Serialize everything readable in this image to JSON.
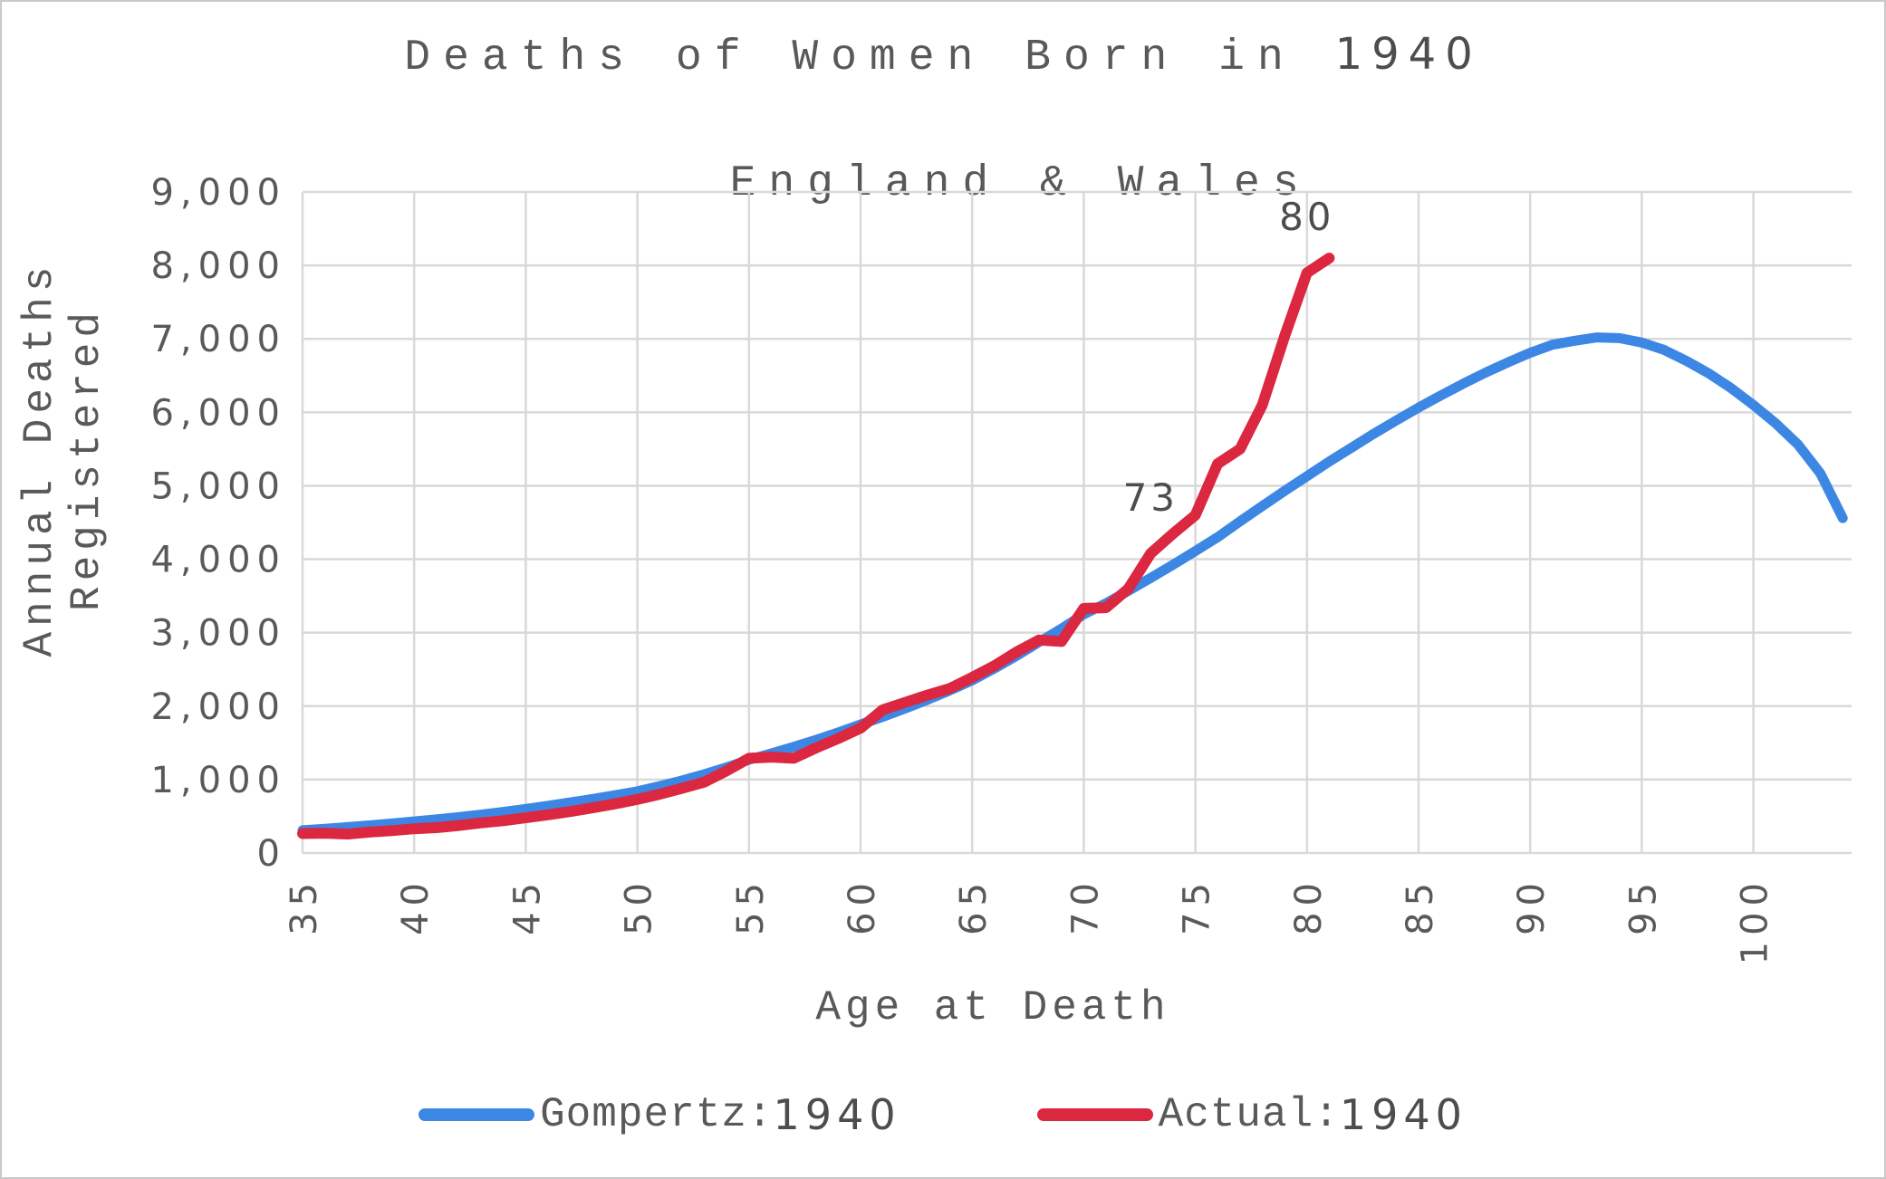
{
  "title": {
    "line1_text": "Deaths of Women Born in ",
    "line1_year": "1940",
    "line2": "England & Wales"
  },
  "y_axis": {
    "title": "Annual Deaths Registered",
    "ticks": [
      {
        "label": "0",
        "value": 0
      },
      {
        "label": "1,000",
        "value": 1000
      },
      {
        "label": "2,000",
        "value": 2000
      },
      {
        "label": "3,000",
        "value": 3000
      },
      {
        "label": "4,000",
        "value": 4000
      },
      {
        "label": "5,000",
        "value": 5000
      },
      {
        "label": "6,000",
        "value": 6000
      },
      {
        "label": "7,000",
        "value": 7000
      },
      {
        "label": "8,000",
        "value": 8000
      },
      {
        "label": "9,000",
        "value": 9000
      }
    ]
  },
  "x_axis": {
    "title": "Age at Death",
    "ticks": [
      {
        "label": "35",
        "value": 35
      },
      {
        "label": "40",
        "value": 40
      },
      {
        "label": "45",
        "value": 45
      },
      {
        "label": "50",
        "value": 50
      },
      {
        "label": "55",
        "value": 55
      },
      {
        "label": "60",
        "value": 60
      },
      {
        "label": "65",
        "value": 65
      },
      {
        "label": "70",
        "value": 70
      },
      {
        "label": "75",
        "value": 75
      },
      {
        "label": "80",
        "value": 80
      },
      {
        "label": "85",
        "value": 85
      },
      {
        "label": "90",
        "value": 90
      },
      {
        "label": "95",
        "value": 95
      },
      {
        "label": "100",
        "value": 100
      }
    ]
  },
  "legend": [
    {
      "label": "Gompertz: ",
      "year": "1940",
      "color": "#3D87E4"
    },
    {
      "label": "Actual: ",
      "year": "1940",
      "color": "#DB2740"
    }
  ],
  "colors": {
    "gompertz_blue": "#3D87E4",
    "actual_red": "#DB2740",
    "grid": "#d9d9d9",
    "text": "#595959"
  },
  "chart_data": {
    "type": "line",
    "title": "Deaths of Women Born in 1940  England & Wales",
    "xlabel": "Age at Death",
    "ylabel": "Annual Deaths Registered",
    "xlim": [
      35,
      104.5
    ],
    "ylim": [
      0,
      9000
    ],
    "grid": true,
    "legend_position": "bottom",
    "annotations": [
      {
        "label": "73",
        "x": 73,
        "y": 4080
      },
      {
        "label": "80",
        "x": 80,
        "y": 7900
      }
    ],
    "series": [
      {
        "name": "Gompertz: 1940",
        "color": "#3D87E4",
        "x": [
          35,
          36,
          37,
          38,
          39,
          40,
          41,
          42,
          43,
          44,
          45,
          46,
          47,
          48,
          49,
          50,
          51,
          52,
          53,
          54,
          55,
          56,
          57,
          58,
          59,
          60,
          61,
          62,
          63,
          64,
          65,
          66,
          67,
          68,
          69,
          70,
          71,
          72,
          73,
          74,
          75,
          76,
          77,
          78,
          79,
          80,
          81,
          82,
          83,
          84,
          85,
          86,
          87,
          88,
          89,
          90,
          91,
          92,
          93,
          94,
          95,
          96,
          97,
          98,
          99,
          100,
          101,
          102,
          103,
          104
        ],
        "values": [
          310,
          330,
          352,
          376,
          402,
          430,
          458,
          489,
          523,
          560,
          600,
          643,
          689,
          736,
          786,
          840,
          911,
          988,
          1072,
          1166,
          1270,
          1355,
          1445,
          1540,
          1642,
          1750,
          1856,
          1968,
          2087,
          2214,
          2350,
          2512,
          2686,
          2872,
          3055,
          3250,
          3400,
          3570,
          3745,
          3925,
          4110,
          4300,
          4515,
          4725,
          4930,
          5130,
          5330,
          5520,
          5710,
          5890,
          6065,
          6230,
          6390,
          6540,
          6680,
          6810,
          6920,
          6975,
          7020,
          7010,
          6950,
          6850,
          6700,
          6530,
          6330,
          6100,
          5850,
          5560,
          5170,
          4560
        ]
      },
      {
        "name": "Actual: 1940",
        "color": "#DB2740",
        "x": [
          35,
          36,
          37,
          38,
          39,
          40,
          41,
          42,
          43,
          44,
          45,
          46,
          47,
          48,
          49,
          50,
          51,
          52,
          53,
          54,
          55,
          56,
          57,
          58,
          59,
          60,
          61,
          62,
          63,
          64,
          65,
          66,
          67,
          68,
          69,
          70,
          71,
          72,
          73,
          74,
          75,
          76,
          77,
          78,
          79,
          80,
          81
        ],
        "values": [
          265,
          270,
          258,
          285,
          305,
          330,
          345,
          375,
          410,
          440,
          480,
          520,
          565,
          615,
          670,
          730,
          800,
          880,
          965,
          1120,
          1290,
          1305,
          1290,
          1430,
          1560,
          1700,
          1950,
          2050,
          2150,
          2240,
          2390,
          2550,
          2740,
          2900,
          2880,
          3330,
          3340,
          3600,
          4080,
          4350,
          4600,
          5300,
          5500,
          6100,
          7040,
          7900,
          8100
        ]
      }
    ]
  }
}
